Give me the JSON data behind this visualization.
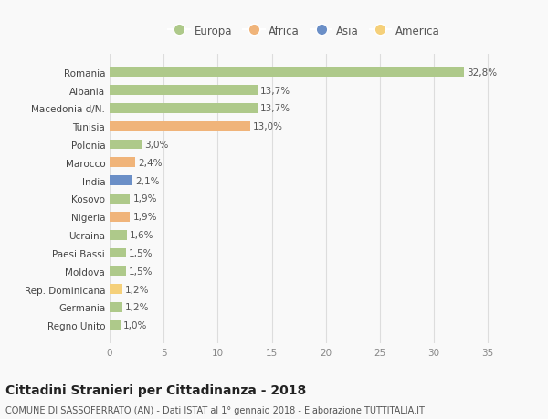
{
  "countries": [
    "Romania",
    "Albania",
    "Macedonia d/N.",
    "Tunisia",
    "Polonia",
    "Marocco",
    "India",
    "Kosovo",
    "Nigeria",
    "Ucraina",
    "Paesi Bassi",
    "Moldova",
    "Rep. Dominicana",
    "Germania",
    "Regno Unito"
  ],
  "values": [
    32.8,
    13.7,
    13.7,
    13.0,
    3.0,
    2.4,
    2.1,
    1.9,
    1.9,
    1.6,
    1.5,
    1.5,
    1.2,
    1.2,
    1.0
  ],
  "labels": [
    "32,8%",
    "13,7%",
    "13,7%",
    "13,0%",
    "3,0%",
    "2,4%",
    "2,1%",
    "1,9%",
    "1,9%",
    "1,6%",
    "1,5%",
    "1,5%",
    "1,2%",
    "1,2%",
    "1,0%"
  ],
  "continents": [
    "Europa",
    "Europa",
    "Europa",
    "Africa",
    "Europa",
    "Africa",
    "Asia",
    "Europa",
    "Africa",
    "Europa",
    "Europa",
    "Europa",
    "America",
    "Europa",
    "Europa"
  ],
  "continent_colors": {
    "Europa": "#aec98a",
    "Africa": "#f0b47a",
    "Asia": "#6b8fc7",
    "America": "#f5d07a"
  },
  "legend_order": [
    "Europa",
    "Africa",
    "Asia",
    "America"
  ],
  "legend_colors": [
    "#aec98a",
    "#f0b47a",
    "#6b8fc7",
    "#f5d07a"
  ],
  "xlim": [
    0,
    36
  ],
  "xticks": [
    0,
    5,
    10,
    15,
    20,
    25,
    30,
    35
  ],
  "title": "Cittadini Stranieri per Cittadinanza - 2018",
  "subtitle": "COMUNE DI SASSOFERRATO (AN) - Dati ISTAT al 1° gennaio 2018 - Elaborazione TUTTITALIA.IT",
  "background_color": "#f9f9f9",
  "grid_color": "#dddddd",
  "bar_height": 0.55,
  "title_fontsize": 10,
  "subtitle_fontsize": 7,
  "label_fontsize": 7.5,
  "tick_fontsize": 7.5,
  "legend_fontsize": 8.5
}
